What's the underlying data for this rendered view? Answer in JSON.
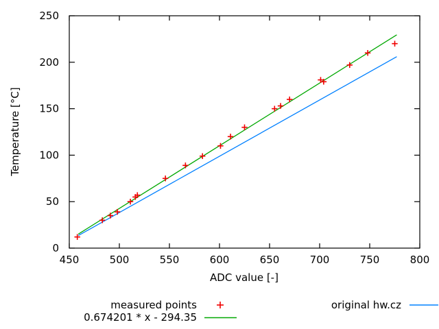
{
  "chart_data": {
    "type": "scatter",
    "title": "",
    "xlabel": "ADC value [-]",
    "ylabel": "Temperature [°C]",
    "xlim": [
      450,
      800
    ],
    "ylim": [
      0,
      250
    ],
    "xticks": [
      450,
      500,
      550,
      600,
      650,
      700,
      750,
      800
    ],
    "yticks": [
      0,
      50,
      100,
      150,
      200,
      250
    ],
    "grid": false,
    "legend_position": "below plot, two columns",
    "background_color": "#ffffff",
    "border_color": "#000000",
    "series": [
      {
        "name": "measured points",
        "kind": "points",
        "marker": "plus",
        "color": "#f00000",
        "points": [
          [
            458,
            12
          ],
          [
            483,
            30
          ],
          [
            491,
            35
          ],
          [
            498,
            39
          ],
          [
            511,
            50
          ],
          [
            516,
            55
          ],
          [
            518,
            57
          ],
          [
            546,
            75
          ],
          [
            566,
            89
          ],
          [
            583,
            99
          ],
          [
            601,
            110
          ],
          [
            611,
            120
          ],
          [
            625,
            130
          ],
          [
            655,
            150
          ],
          [
            661,
            153
          ],
          [
            670,
            160
          ],
          [
            701,
            181
          ],
          [
            704,
            179
          ],
          [
            730,
            197
          ],
          [
            748,
            210
          ],
          [
            775,
            220
          ]
        ]
      },
      {
        "name": "0.674201 * x - 294.35",
        "kind": "line",
        "color": "#00a800",
        "equation": {
          "slope": 0.674201,
          "intercept": -294.35
        },
        "x_range": [
          459,
          777
        ]
      },
      {
        "name": "original hw.cz",
        "kind": "line",
        "color": "#0080ff",
        "points": [
          [
            459,
            13.5
          ],
          [
            777,
            206
          ]
        ]
      }
    ]
  }
}
